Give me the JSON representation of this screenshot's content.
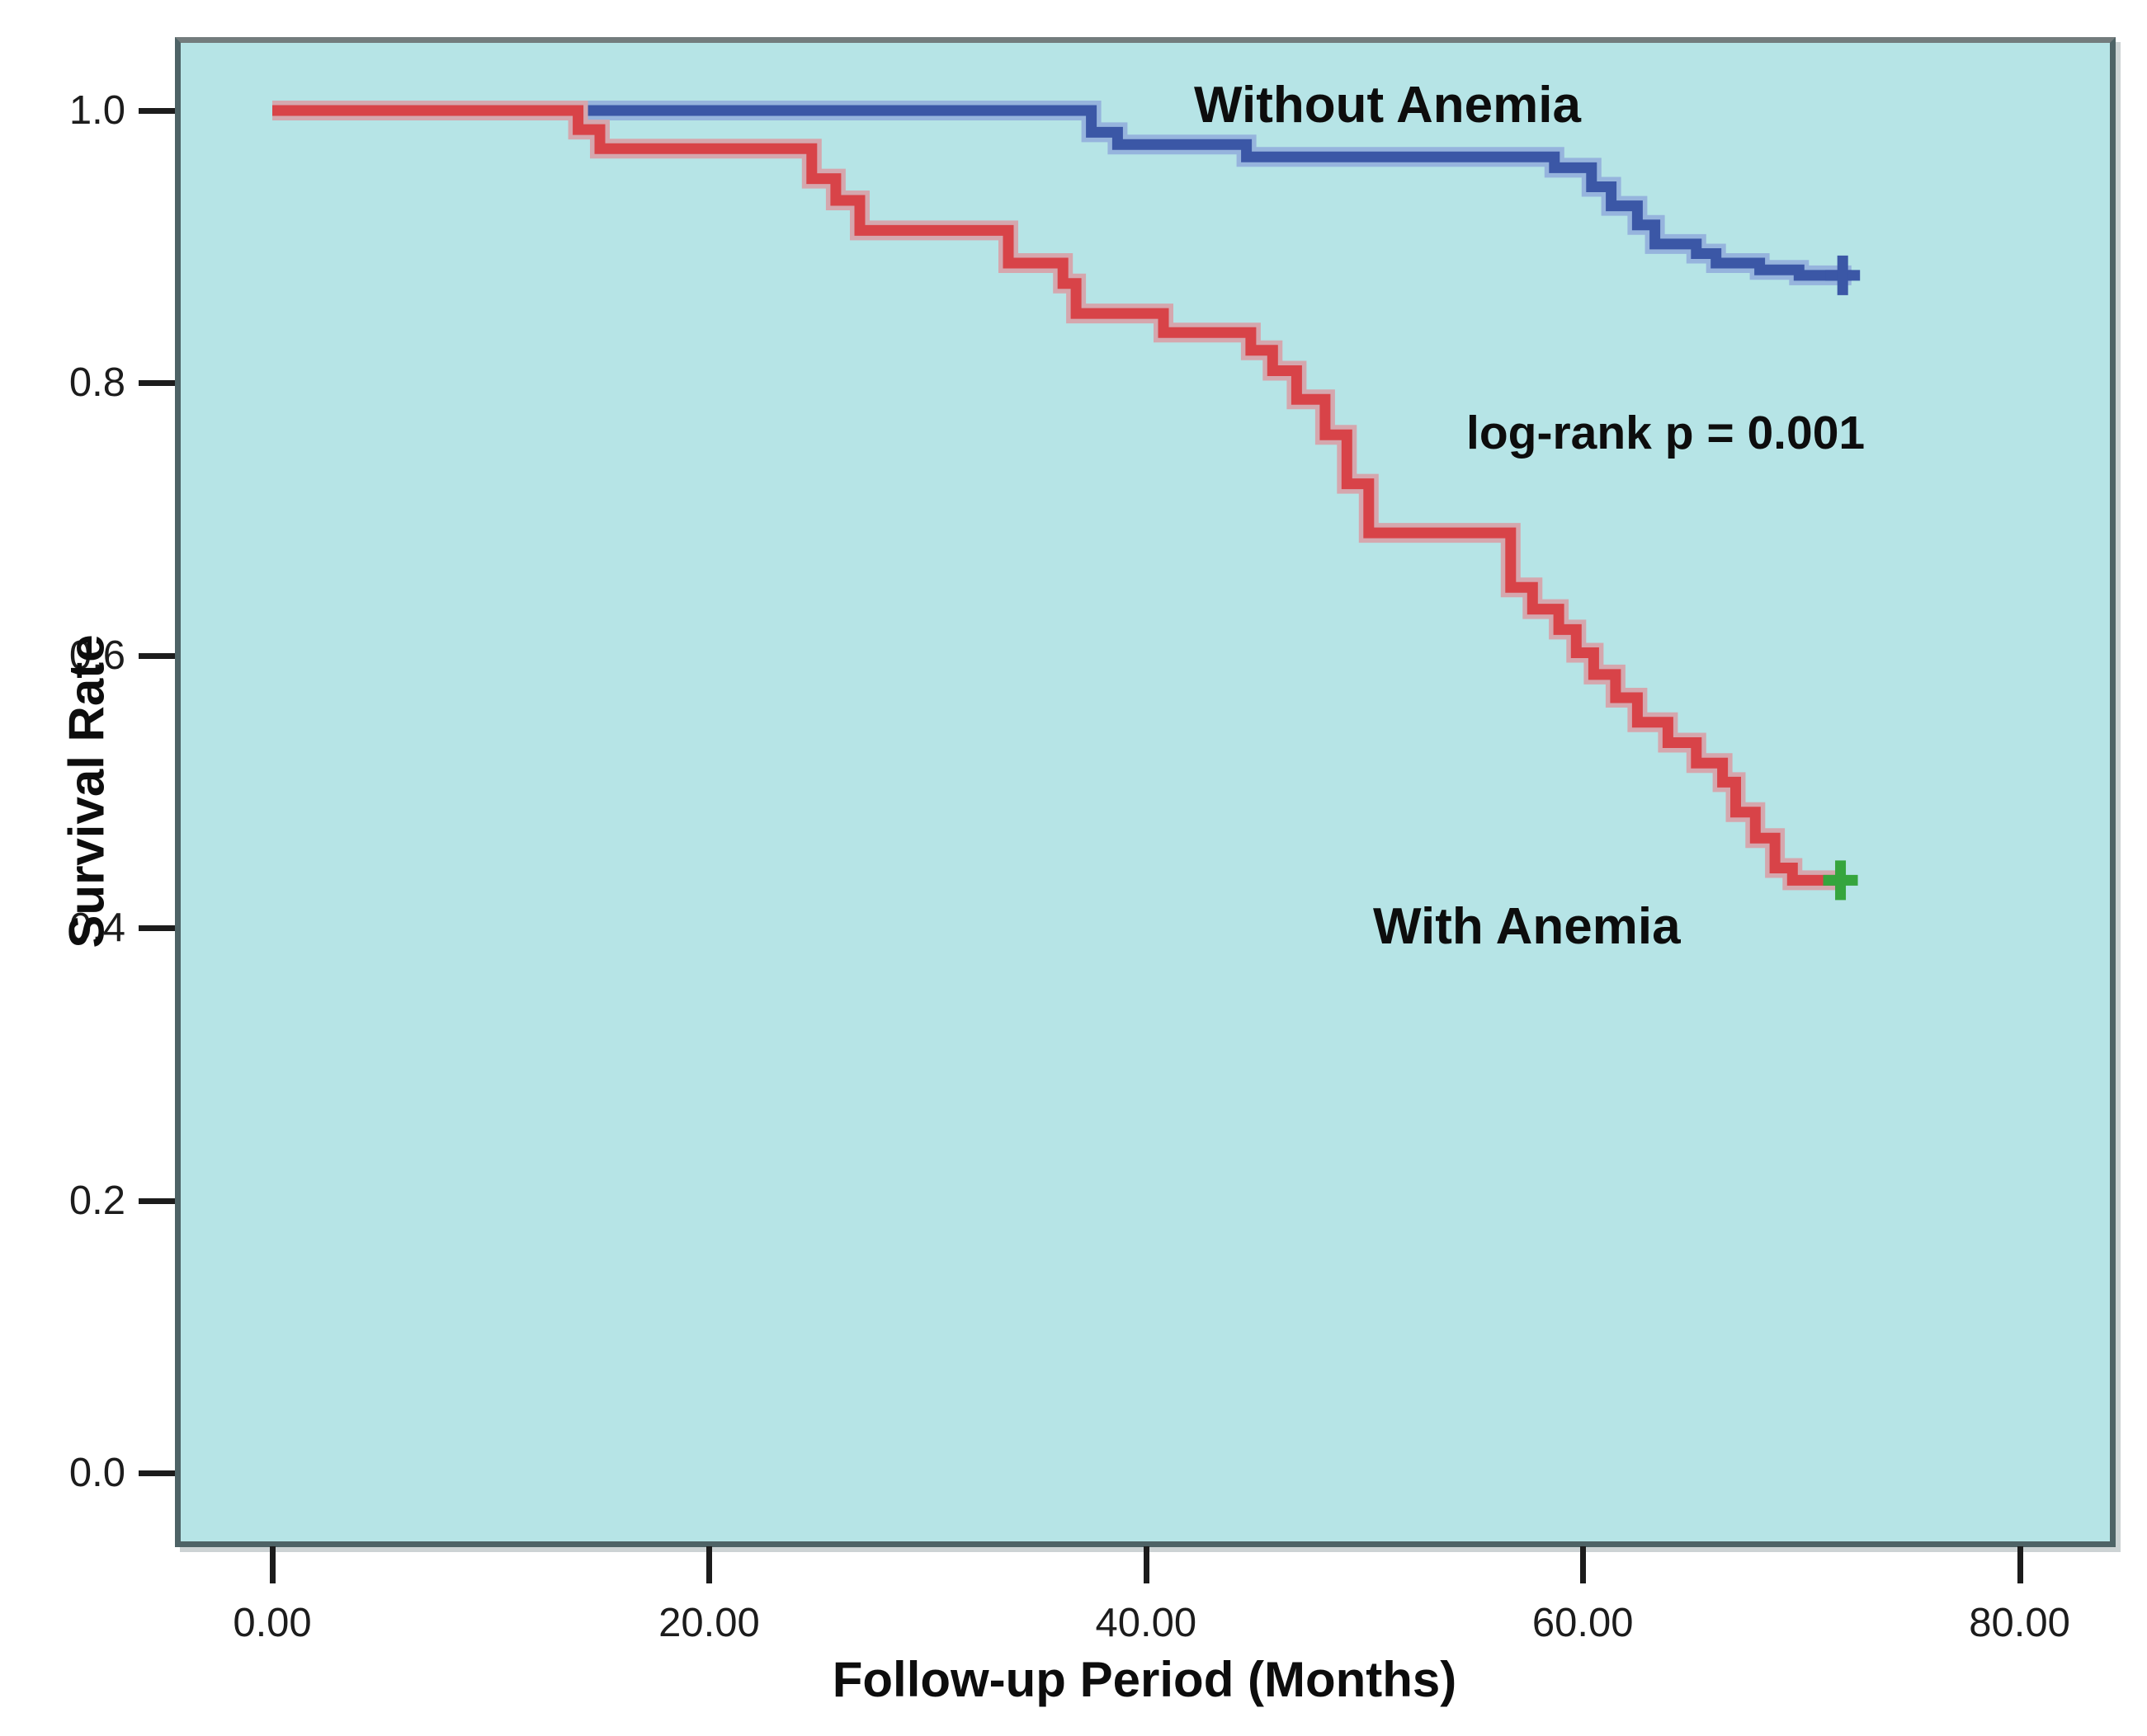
{
  "figure": {
    "background": "#ffffff",
    "plot_background": "#b6e4e6",
    "plot_border_color": "#4e6366"
  },
  "chart_data": {
    "type": "line",
    "subtype": "kaplan-meier-step",
    "title": "",
    "xlabel": "Follow-up Period (Months)",
    "ylabel": "Survival Rate",
    "xlim": [
      0,
      80
    ],
    "ylim": [
      0.0,
      1.0
    ],
    "grid": "off",
    "legend_position": "none (direct curve labels)",
    "x_ticks": [
      {
        "value": 0,
        "label": "0.00"
      },
      {
        "value": 20,
        "label": "20.00"
      },
      {
        "value": 40,
        "label": "40.00"
      },
      {
        "value": 60,
        "label": "60.00"
      },
      {
        "value": 80,
        "label": "80.00"
      }
    ],
    "y_ticks": [
      {
        "value": 1.0,
        "label": "1.0"
      },
      {
        "value": 0.8,
        "label": "0.8"
      },
      {
        "value": 0.6,
        "label": "0.6"
      },
      {
        "value": 0.4,
        "label": "0.4"
      },
      {
        "value": 0.2,
        "label": "0.2"
      },
      {
        "value": 0.0,
        "label": "0.0"
      }
    ],
    "annotations": [
      {
        "text": "log-rank p = 0.001"
      }
    ],
    "series": [
      {
        "name": "Without Anemia",
        "color": "#3b57a6",
        "halo_color": "#96b4dd",
        "start": [
          0,
          1.0
        ],
        "events": [
          [
            37.5,
            0.984
          ],
          [
            38.7,
            0.975
          ],
          [
            44.6,
            0.966
          ],
          [
            58.7,
            0.958
          ],
          [
            60.4,
            0.944
          ],
          [
            61.3,
            0.93
          ],
          [
            62.5,
            0.916
          ],
          [
            63.3,
            0.902
          ],
          [
            65.2,
            0.895
          ],
          [
            66.1,
            0.888
          ],
          [
            68.1,
            0.883
          ],
          [
            69.9,
            0.879
          ]
        ],
        "end_time": 72.3,
        "censor": {
          "time": 71.9,
          "value": 0.879,
          "color": "#3b57a6"
        }
      },
      {
        "name": "With Anemia",
        "color": "#d84348",
        "halo_color": "#d5a7ae",
        "start": [
          0,
          1.0
        ],
        "events": [
          [
            14.0,
            0.986
          ],
          [
            15.0,
            0.972
          ],
          [
            24.7,
            0.95
          ],
          [
            25.8,
            0.934
          ],
          [
            26.9,
            0.912
          ],
          [
            33.7,
            0.888
          ],
          [
            36.2,
            0.873
          ],
          [
            36.8,
            0.851
          ],
          [
            40.8,
            0.837
          ],
          [
            44.8,
            0.824
          ],
          [
            45.8,
            0.809
          ],
          [
            46.9,
            0.788
          ],
          [
            48.2,
            0.762
          ],
          [
            49.2,
            0.726
          ],
          [
            50.2,
            0.69
          ],
          [
            56.7,
            0.65
          ],
          [
            57.7,
            0.634
          ],
          [
            58.9,
            0.619
          ],
          [
            59.7,
            0.602
          ],
          [
            60.5,
            0.586
          ],
          [
            61.5,
            0.569
          ],
          [
            62.5,
            0.551
          ],
          [
            63.9,
            0.536
          ],
          [
            65.2,
            0.521
          ],
          [
            66.4,
            0.507
          ],
          [
            67.0,
            0.485
          ],
          [
            67.9,
            0.466
          ],
          [
            68.8,
            0.444
          ],
          [
            69.6,
            0.435
          ]
        ],
        "end_time": 71.9,
        "censor": {
          "time": 71.8,
          "value": 0.435,
          "color": "#35a53d"
        }
      }
    ]
  }
}
